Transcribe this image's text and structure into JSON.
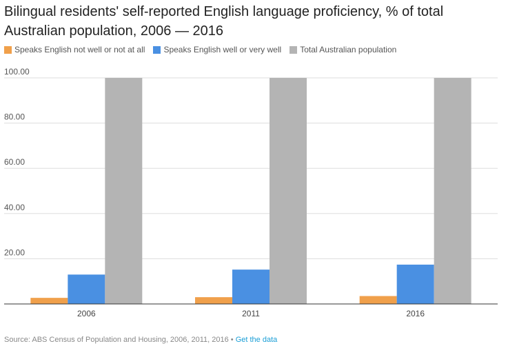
{
  "chart_data": {
    "type": "bar",
    "title": "Bilingual residents' self-reported English language proficiency, % of total Australian population, 2006 — 2016",
    "categories": [
      "2006",
      "2011",
      "2016"
    ],
    "series": [
      {
        "name": "Speaks English not well or not at all",
        "color": "#f0a04b",
        "values": [
          2.7,
          3.0,
          3.5
        ]
      },
      {
        "name": "Speaks English well or very well",
        "color": "#4a90e2",
        "values": [
          13.0,
          15.2,
          17.4
        ]
      },
      {
        "name": "Total Australian population",
        "color": "#b4b4b4",
        "values": [
          100,
          100,
          100
        ]
      }
    ],
    "ylim": [
      0,
      100
    ],
    "yticks": [
      "20.00",
      "40.00",
      "60.00",
      "80.00",
      "100.00"
    ],
    "xlabel": "",
    "ylabel": "",
    "grid": true,
    "legend": "top-left"
  },
  "source": {
    "text": "Source: ABS Census of Population and Housing, 2006, 2011, 2016 • ",
    "link": "Get the data"
  }
}
